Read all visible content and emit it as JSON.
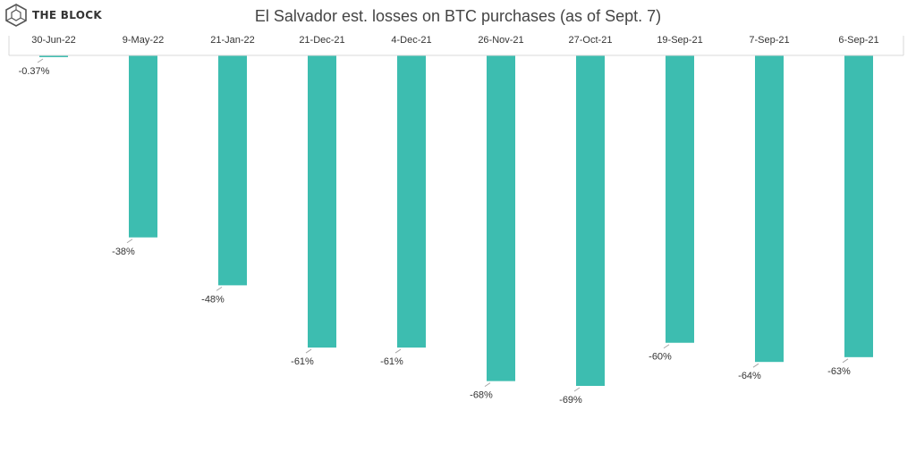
{
  "brand": {
    "name": "THE BLOCK",
    "logo_icon": "hexagon-cube-icon"
  },
  "chart_data": {
    "type": "bar",
    "title": "El Salvador est. losses on BTC purchases (as of Sept. 7)",
    "categories": [
      "30-Jun-22",
      "9-May-22",
      "21-Jan-22",
      "21-Dec-21",
      "4-Dec-21",
      "26-Nov-21",
      "27-Oct-21",
      "19-Sep-21",
      "7-Sep-21",
      "6-Sep-21"
    ],
    "values": [
      -0.37,
      -38,
      -48,
      -61,
      -61,
      -68,
      -69,
      -60,
      -64,
      -63
    ],
    "data_labels": [
      "-0.37%",
      "-38%",
      "-48%",
      "-61%",
      "-61%",
      "-68%",
      "-69%",
      "-60%",
      "-64%",
      "-63%"
    ],
    "xaxis_position": "top",
    "ylim": [
      -69,
      0
    ],
    "grid": false,
    "legend": "none",
    "bar_color": "#3dbdb0"
  }
}
